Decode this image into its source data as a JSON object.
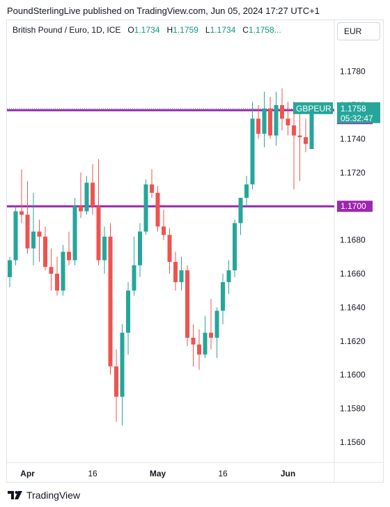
{
  "publisher": "PoundSterlingLive published on TradingView.com, Jun 05, 2024 17:27 UTC+1",
  "legend": {
    "symbol": "British Pound / Euro, 1D, ICE",
    "o_label": "O",
    "o_value": "1.1734",
    "h_label": "H",
    "h_value": "1.1759",
    "l_label": "L",
    "l_value": "1.1734",
    "c_label": "C",
    "c_value": "1.1758",
    "more": "..."
  },
  "currency_button": "EUR",
  "branding": "TradingView",
  "colors": {
    "up": "#26a69a",
    "down": "#ef5350",
    "level_line": "#9c27b0",
    "price_tag": "#26a69a"
  },
  "chart_data": {
    "type": "candlestick",
    "symbol": "GBPEUR",
    "ylim": [
      1.1545,
      1.1805
    ],
    "y_ticks": [
      "1.1560",
      "1.1580",
      "1.1600",
      "1.1620",
      "1.1640",
      "1.1660",
      "1.1680",
      "1.1700",
      "1.1720",
      "1.1740",
      "1.1760",
      "1.1780"
    ],
    "x_ticks": [
      {
        "label": "Apr",
        "index": 3
      },
      {
        "label": "16",
        "index": 14
      },
      {
        "label": "May",
        "index": 25
      },
      {
        "label": "16",
        "index": 36
      },
      {
        "label": "Jun",
        "index": 47
      }
    ],
    "candles": [
      {
        "o": 1.1658,
        "h": 1.167,
        "l": 1.1652,
        "c": 1.1668
      },
      {
        "o": 1.1668,
        "h": 1.17,
        "l": 1.1665,
        "c": 1.1697
      },
      {
        "o": 1.1697,
        "h": 1.1722,
        "l": 1.169,
        "c": 1.1695
      },
      {
        "o": 1.1695,
        "h": 1.1715,
        "l": 1.1672,
        "c": 1.1675
      },
      {
        "o": 1.1675,
        "h": 1.1708,
        "l": 1.1665,
        "c": 1.1685
      },
      {
        "o": 1.1685,
        "h": 1.1692,
        "l": 1.1667,
        "c": 1.1682
      },
      {
        "o": 1.1682,
        "h": 1.1688,
        "l": 1.1662,
        "c": 1.1664
      },
      {
        "o": 1.1664,
        "h": 1.1675,
        "l": 1.165,
        "c": 1.166
      },
      {
        "o": 1.166,
        "h": 1.167,
        "l": 1.1647,
        "c": 1.165
      },
      {
        "o": 1.165,
        "h": 1.1677,
        "l": 1.1647,
        "c": 1.1673
      },
      {
        "o": 1.1673,
        "h": 1.1685,
        "l": 1.1665,
        "c": 1.1668
      },
      {
        "o": 1.1668,
        "h": 1.1705,
        "l": 1.1665,
        "c": 1.17
      },
      {
        "o": 1.17,
        "h": 1.172,
        "l": 1.1693,
        "c": 1.1697
      },
      {
        "o": 1.1697,
        "h": 1.1718,
        "l": 1.1695,
        "c": 1.1714
      },
      {
        "o": 1.1714,
        "h": 1.1725,
        "l": 1.1695,
        "c": 1.17
      },
      {
        "o": 1.17,
        "h": 1.1728,
        "l": 1.1665,
        "c": 1.1668
      },
      {
        "o": 1.1668,
        "h": 1.1688,
        "l": 1.166,
        "c": 1.1682
      },
      {
        "o": 1.1682,
        "h": 1.169,
        "l": 1.16,
        "c": 1.1605
      },
      {
        "o": 1.1605,
        "h": 1.1615,
        "l": 1.1572,
        "c": 1.1587
      },
      {
        "o": 1.1587,
        "h": 1.163,
        "l": 1.157,
        "c": 1.1625
      },
      {
        "o": 1.1625,
        "h": 1.1655,
        "l": 1.1612,
        "c": 1.165
      },
      {
        "o": 1.165,
        "h": 1.1682,
        "l": 1.1647,
        "c": 1.1665
      },
      {
        "o": 1.1665,
        "h": 1.169,
        "l": 1.1658,
        "c": 1.1685
      },
      {
        "o": 1.1685,
        "h": 1.1716,
        "l": 1.1683,
        "c": 1.1713
      },
      {
        "o": 1.1713,
        "h": 1.1722,
        "l": 1.1705,
        "c": 1.1708
      },
      {
        "o": 1.1708,
        "h": 1.1712,
        "l": 1.1685,
        "c": 1.1688
      },
      {
        "o": 1.1688,
        "h": 1.1698,
        "l": 1.168,
        "c": 1.1683
      },
      {
        "o": 1.1683,
        "h": 1.1687,
        "l": 1.166,
        "c": 1.1667
      },
      {
        "o": 1.1667,
        "h": 1.1673,
        "l": 1.165,
        "c": 1.1655
      },
      {
        "o": 1.1655,
        "h": 1.167,
        "l": 1.165,
        "c": 1.1662
      },
      {
        "o": 1.1662,
        "h": 1.1665,
        "l": 1.1617,
        "c": 1.1622
      },
      {
        "o": 1.1622,
        "h": 1.163,
        "l": 1.1605,
        "c": 1.1618
      },
      {
        "o": 1.1618,
        "h": 1.1627,
        "l": 1.1603,
        "c": 1.1612
      },
      {
        "o": 1.1612,
        "h": 1.1635,
        "l": 1.161,
        "c": 1.1625
      },
      {
        "o": 1.1625,
        "h": 1.1645,
        "l": 1.1615,
        "c": 1.1622
      },
      {
        "o": 1.1622,
        "h": 1.164,
        "l": 1.161,
        "c": 1.1638
      },
      {
        "o": 1.1638,
        "h": 1.166,
        "l": 1.163,
        "c": 1.1655
      },
      {
        "o": 1.1655,
        "h": 1.1668,
        "l": 1.1648,
        "c": 1.1662
      },
      {
        "o": 1.1662,
        "h": 1.1692,
        "l": 1.1658,
        "c": 1.169
      },
      {
        "o": 1.169,
        "h": 1.1705,
        "l": 1.1683,
        "c": 1.1705
      },
      {
        "o": 1.1705,
        "h": 1.1718,
        "l": 1.17,
        "c": 1.1713
      },
      {
        "o": 1.1713,
        "h": 1.1762,
        "l": 1.171,
        "c": 1.1752
      },
      {
        "o": 1.1752,
        "h": 1.176,
        "l": 1.174,
        "c": 1.1743
      },
      {
        "o": 1.1743,
        "h": 1.1768,
        "l": 1.1735,
        "c": 1.1758
      },
      {
        "o": 1.1758,
        "h": 1.1765,
        "l": 1.174,
        "c": 1.1742
      },
      {
        "o": 1.1742,
        "h": 1.1768,
        "l": 1.1736,
        "c": 1.176
      },
      {
        "o": 1.176,
        "h": 1.177,
        "l": 1.1745,
        "c": 1.1752
      },
      {
        "o": 1.1752,
        "h": 1.1762,
        "l": 1.1742,
        "c": 1.1748
      },
      {
        "o": 1.1748,
        "h": 1.1762,
        "l": 1.171,
        "c": 1.1742
      },
      {
        "o": 1.1742,
        "h": 1.1755,
        "l": 1.1715,
        "c": 1.1741
      },
      {
        "o": 1.1741,
        "h": 1.1752,
        "l": 1.1732,
        "c": 1.1737
      },
      {
        "o": 1.1734,
        "h": 1.1759,
        "l": 1.1734,
        "c": 1.1758
      }
    ],
    "levels": [
      {
        "value": 1.1757,
        "label": "1.1757"
      },
      {
        "value": 1.17,
        "label": "1.1700"
      }
    ],
    "last_price": {
      "symbol": "GBPEUR",
      "value": "1.1758",
      "countdown": "05:32:47",
      "y": 1.1758
    }
  }
}
